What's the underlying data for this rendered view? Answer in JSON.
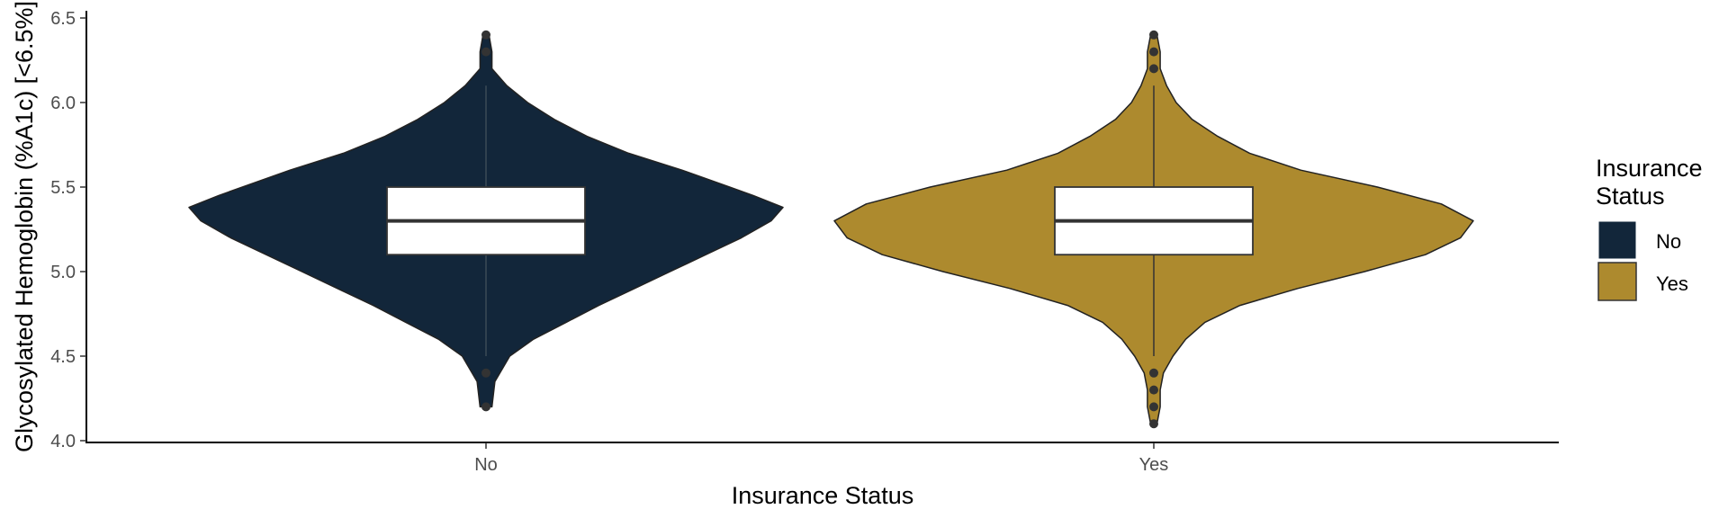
{
  "chart_data": {
    "type": "violin",
    "title": "",
    "xlabel": "Insurance Status",
    "ylabel": "Glycosylated Hemoglobin (%A1c) [<6.5%]",
    "categories": [
      "No",
      "Yes"
    ],
    "yticks": [
      "4.0",
      "4.5",
      "5.0",
      "5.5",
      "6.0",
      "6.5"
    ],
    "ylim": [
      4.0,
      6.5
    ],
    "grid": false,
    "legend": {
      "title_lines": [
        "Insurance",
        "Status"
      ],
      "position": "right",
      "entries": [
        "No",
        "Yes"
      ]
    },
    "series": [
      {
        "category": "No",
        "color": "#12263a",
        "boxplot": {
          "lower_whisker": 4.5,
          "q1": 5.1,
          "median": 5.3,
          "q3": 5.5,
          "upper_whisker": 6.1
        },
        "outliers": [
          4.2,
          4.4,
          6.3,
          6.4
        ],
        "density": [
          [
            4.2,
            0.02
          ],
          [
            4.35,
            0.03
          ],
          [
            4.5,
            0.08
          ],
          [
            4.6,
            0.16
          ],
          [
            4.7,
            0.27
          ],
          [
            4.8,
            0.38
          ],
          [
            4.9,
            0.5
          ],
          [
            5.0,
            0.62
          ],
          [
            5.1,
            0.74
          ],
          [
            5.2,
            0.86
          ],
          [
            5.3,
            0.96
          ],
          [
            5.38,
            1.0
          ],
          [
            5.45,
            0.9
          ],
          [
            5.5,
            0.82
          ],
          [
            5.6,
            0.66
          ],
          [
            5.7,
            0.48
          ],
          [
            5.8,
            0.34
          ],
          [
            5.9,
            0.23
          ],
          [
            6.0,
            0.14
          ],
          [
            6.1,
            0.07
          ],
          [
            6.2,
            0.02
          ],
          [
            6.3,
            0.02
          ],
          [
            6.4,
            0.01
          ]
        ]
      },
      {
        "category": "Yes",
        "color": "#ad8a2e",
        "boxplot": {
          "lower_whisker": 4.5,
          "q1": 5.1,
          "median": 5.3,
          "q3": 5.5,
          "upper_whisker": 6.1
        },
        "outliers": [
          4.1,
          4.2,
          4.3,
          4.4,
          6.2,
          6.3,
          6.4
        ],
        "density": [
          [
            4.1,
            0.01
          ],
          [
            4.2,
            0.02
          ],
          [
            4.3,
            0.02
          ],
          [
            4.4,
            0.03
          ],
          [
            4.5,
            0.06
          ],
          [
            4.6,
            0.1
          ],
          [
            4.7,
            0.16
          ],
          [
            4.8,
            0.27
          ],
          [
            4.9,
            0.45
          ],
          [
            5.0,
            0.66
          ],
          [
            5.1,
            0.85
          ],
          [
            5.2,
            0.96
          ],
          [
            5.3,
            1.0
          ],
          [
            5.4,
            0.9
          ],
          [
            5.5,
            0.7
          ],
          [
            5.6,
            0.46
          ],
          [
            5.7,
            0.3
          ],
          [
            5.8,
            0.2
          ],
          [
            5.9,
            0.12
          ],
          [
            6.0,
            0.07
          ],
          [
            6.1,
            0.04
          ],
          [
            6.2,
            0.02
          ],
          [
            6.3,
            0.02
          ],
          [
            6.4,
            0.01
          ]
        ]
      }
    ]
  }
}
